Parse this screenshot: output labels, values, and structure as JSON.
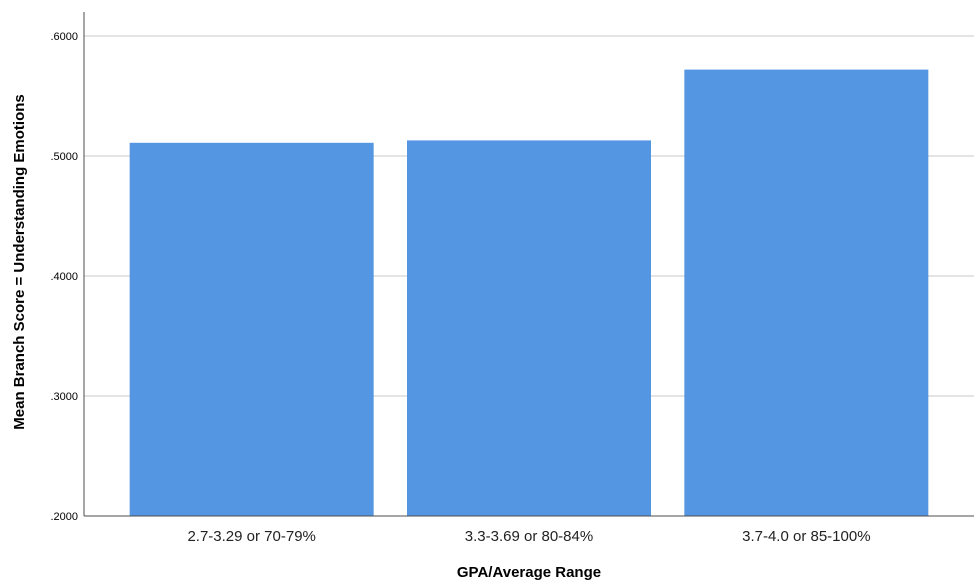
{
  "chart_data": {
    "type": "bar",
    "xlabel": "GPA/Average Range",
    "ylabel": "Mean Branch Score = Understanding Emotions",
    "categories": [
      "2.7-3.29 or 70-79%",
      "3.3-3.69 or 80-84%",
      "3.7-4.0 or 85-100%"
    ],
    "values": [
      0.511,
      0.513,
      0.572
    ],
    "ylim": [
      0.2,
      0.6
    ],
    "yticks": [
      ".2000",
      ".3000",
      ".4000",
      ".5000",
      ".6000"
    ],
    "grid": true,
    "bar_color": "#5596e3",
    "grid_color": "#c8c8c8",
    "axis_color": "#4d4d4d"
  }
}
